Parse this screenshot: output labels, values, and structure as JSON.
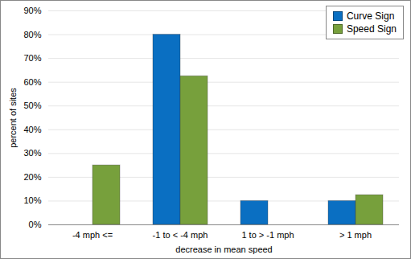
{
  "chart_data": {
    "type": "bar",
    "x_label": "decrease in mean speed",
    "y_label": "percent of sites",
    "categories": [
      "-4 mph <=",
      "-1 to < -4 mph",
      "1 to > -1 mph",
      "> 1 mph"
    ],
    "series": [
      {
        "name": "Curve Sign",
        "color": "#0a6fc2",
        "values": [
          0,
          80,
          10,
          10
        ]
      },
      {
        "name": "Speed Sign",
        "color": "#77a03c",
        "values": [
          25,
          62.5,
          0,
          12.5
        ]
      }
    ],
    "ylim": [
      0,
      90
    ],
    "yticks": [
      {
        "value": 0,
        "label": "0%"
      },
      {
        "value": 10,
        "label": "10%"
      },
      {
        "value": 20,
        "label": "20%"
      },
      {
        "value": 30,
        "label": "30%"
      },
      {
        "value": 40,
        "label": "40%"
      },
      {
        "value": 50,
        "label": "50%"
      },
      {
        "value": 60,
        "label": "60%"
      },
      {
        "value": 70,
        "label": "70%"
      },
      {
        "value": 80,
        "label": "80%"
      },
      {
        "value": 90,
        "label": "90%"
      }
    ],
    "grid": true,
    "legend": "top-right"
  }
}
